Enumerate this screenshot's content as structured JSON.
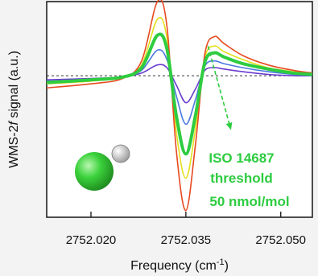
{
  "chart_data": {
    "type": "line",
    "title": "",
    "xlabel_base": "Frequency (cm",
    "xlabel_sup": "-1",
    "xlabel_tail": ")",
    "ylabel_pre": "WMS-2",
    "ylabel_italic": "f",
    "ylabel_post": " signal (a.u.)",
    "xlim": [
      2752.013,
      2752.055
    ],
    "ylim": [
      -1.05,
      0.55
    ],
    "xticks": [
      2752.02,
      2752.035,
      2752.05
    ],
    "xtick_labels": [
      "2752.020",
      "2752.035",
      "2752.050"
    ],
    "baseline": 0,
    "grid": false,
    "x": [
      2752.013,
      2752.02,
      2752.025,
      2752.028,
      2752.0305,
      2752.032,
      2752.0335,
      2752.035,
      2752.0365,
      2752.038,
      2752.0395,
      2752.041,
      2752.044,
      2752.048,
      2752.052,
      2752.055
    ],
    "series": [
      {
        "color": "#6a3ccf",
        "values": [
          -0.03,
          -0.02,
          -0.01,
          0.02,
          0.08,
          0.06,
          -0.07,
          -0.2,
          -0.1,
          0.04,
          0.06,
          0.05,
          0.03,
          0.01,
          0.0,
          0.0
        ]
      },
      {
        "color": "#4a78e0",
        "values": [
          -0.04,
          -0.03,
          -0.01,
          0.04,
          0.19,
          0.12,
          -0.15,
          -0.36,
          -0.18,
          0.07,
          0.11,
          0.09,
          0.06,
          0.03,
          0.01,
          0.0
        ]
      },
      {
        "color": "#2ecc40",
        "values": [
          -0.05,
          -0.03,
          -0.01,
          0.06,
          0.3,
          0.2,
          -0.3,
          -0.58,
          -0.3,
          0.1,
          0.17,
          0.14,
          0.09,
          0.05,
          0.02,
          0.01
        ]
      },
      {
        "color": "#e3e01f",
        "values": [
          -0.06,
          -0.04,
          -0.01,
          0.08,
          0.42,
          0.28,
          -0.42,
          -0.76,
          -0.4,
          0.13,
          0.22,
          0.18,
          0.12,
          0.06,
          0.03,
          0.01
        ]
      },
      {
        "color": "#e64a1f",
        "values": [
          -0.09,
          -0.06,
          -0.02,
          0.11,
          0.55,
          0.37,
          -0.56,
          -1.0,
          -0.52,
          0.16,
          0.29,
          0.24,
          0.15,
          0.08,
          0.04,
          0.02
        ]
      }
    ],
    "highlight_series": 2,
    "annotation": {
      "lines": [
        "ISO 14687",
        "threshold",
        "50 nmol/mol"
      ],
      "color": "#2ecc40",
      "arrow_from": [
        2752.0385,
        0.22
      ],
      "arrow_to": [
        2752.042,
        -0.38
      ]
    },
    "molecule": {
      "large_atom_color": "#3cd23c",
      "small_atom_color": "#ffffff"
    }
  }
}
